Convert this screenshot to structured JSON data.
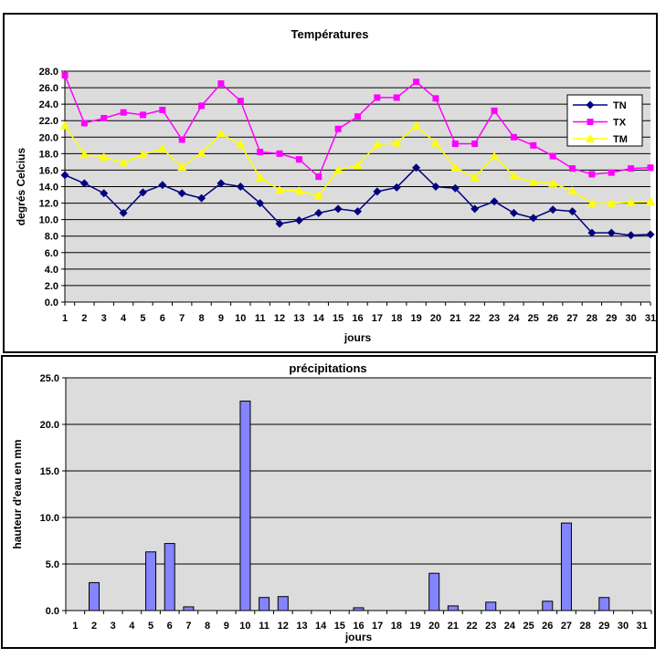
{
  "page": {
    "background": "#FFFFFF"
  },
  "chart_data": [
    {
      "type": "line",
      "title": "Températures",
      "xlabel": "jours",
      "ylabel": "degrés Celcius",
      "categories": [
        "1",
        "2",
        "3",
        "4",
        "5",
        "6",
        "7",
        "8",
        "9",
        "10",
        "11",
        "12",
        "13",
        "14",
        "15",
        "16",
        "17",
        "18",
        "19",
        "20",
        "21",
        "22",
        "23",
        "24",
        "25",
        "26",
        "27",
        "28",
        "29",
        "30",
        "31"
      ],
      "ylim": [
        0,
        28
      ],
      "y_tick_step": 2,
      "y_tick_labels": [
        "0.0",
        "2.0",
        "4.0",
        "6.0",
        "8.0",
        "10.0",
        "12.0",
        "14.0",
        "16.0",
        "18.0",
        "20.0",
        "22.0",
        "24.0",
        "26.0",
        "28.0"
      ],
      "grid": "horizontal",
      "plot_bg": "#DCDCDC",
      "gridline_color": "#000000",
      "legend_position": "right",
      "legend_border": "#000000",
      "series": [
        {
          "name": "TN",
          "color": "#000080",
          "marker": "diamond",
          "values": [
            15.4,
            14.4,
            13.2,
            10.8,
            13.3,
            14.2,
            13.2,
            12.6,
            14.4,
            14.0,
            12.0,
            9.5,
            9.9,
            10.8,
            11.3,
            11.0,
            13.4,
            13.9,
            16.3,
            14.0,
            13.8,
            11.3,
            12.2,
            10.8,
            10.2,
            11.2,
            11.0,
            8.4,
            8.4,
            8.1,
            8.2
          ]
        },
        {
          "name": "TX",
          "color": "#FF00FF",
          "marker": "square",
          "values": [
            27.5,
            21.7,
            22.3,
            23.0,
            22.7,
            23.3,
            19.7,
            23.8,
            26.5,
            24.4,
            18.2,
            18.0,
            17.3,
            15.2,
            21.0,
            22.5,
            24.8,
            24.8,
            26.7,
            24.7,
            19.2,
            19.2,
            23.2,
            20.0,
            19.0,
            17.7,
            16.2,
            15.5,
            15.7,
            16.2,
            16.3
          ]
        },
        {
          "name": "TM",
          "color": "#FFFF00",
          "marker": "triangle",
          "values": [
            21.4,
            17.9,
            17.6,
            16.9,
            17.9,
            18.6,
            16.4,
            18.1,
            20.4,
            19.1,
            15.1,
            13.6,
            13.5,
            12.9,
            16.0,
            16.6,
            19.1,
            19.3,
            21.4,
            19.3,
            16.3,
            15.1,
            17.7,
            15.3,
            14.5,
            14.4,
            13.5,
            12.0,
            12.0,
            12.1,
            12.2
          ]
        }
      ]
    },
    {
      "type": "bar",
      "title": "précipitations",
      "xlabel": "jours",
      "ylabel": "hauteur d'eau en mm",
      "categories": [
        "1",
        "2",
        "3",
        "4",
        "5",
        "6",
        "7",
        "8",
        "9",
        "10",
        "11",
        "12",
        "13",
        "14",
        "15",
        "16",
        "17",
        "18",
        "19",
        "20",
        "21",
        "22",
        "23",
        "24",
        "25",
        "26",
        "27",
        "28",
        "29",
        "30",
        "31"
      ],
      "ylim": [
        0,
        25
      ],
      "y_tick_step": 5,
      "y_tick_labels": [
        "0.0",
        "5.0",
        "10.0",
        "15.0",
        "20.0",
        "25.0"
      ],
      "grid": "horizontal",
      "plot_bg": "#DCDCDC",
      "gridline_color": "#000000",
      "bar_color": "#8484FF",
      "bar_border": "#000000",
      "values": [
        0,
        3.0,
        0,
        0,
        6.3,
        7.2,
        0.4,
        0,
        0,
        22.5,
        1.4,
        1.5,
        0,
        0,
        0,
        0.3,
        0,
        0,
        0,
        4.0,
        0.5,
        0,
        0.9,
        0,
        0,
        1.0,
        9.4,
        0,
        1.4,
        0,
        0
      ]
    }
  ]
}
